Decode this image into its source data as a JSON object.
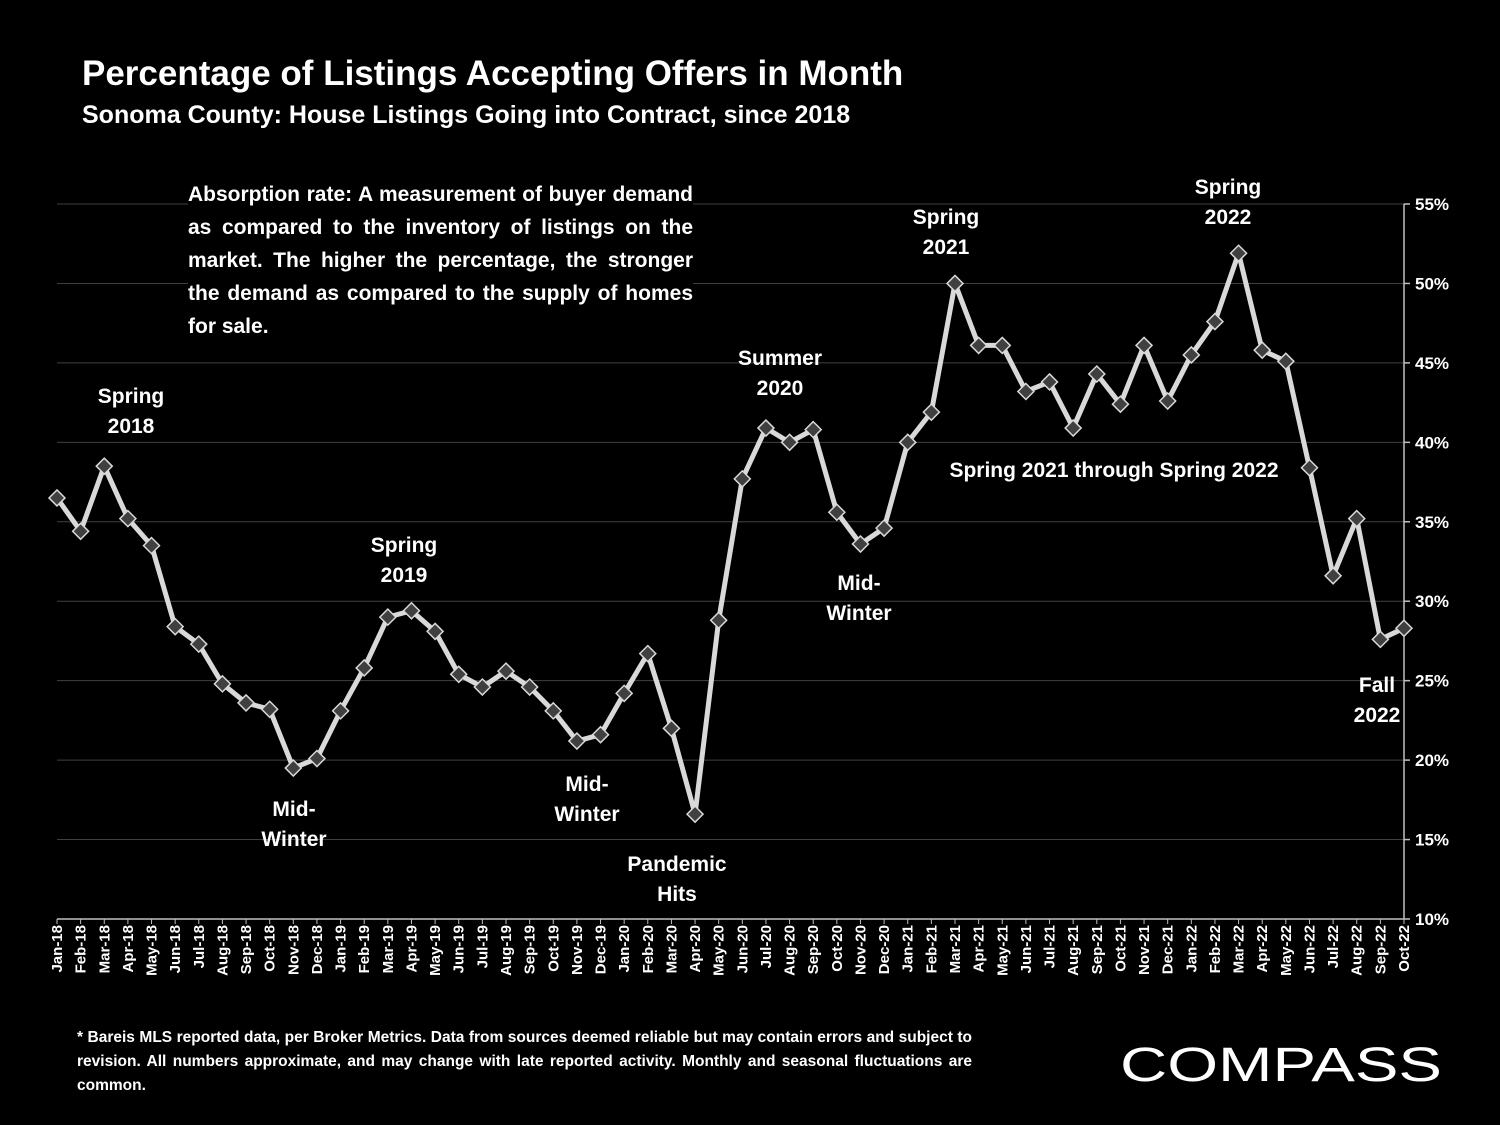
{
  "title": "Percentage of Listings Accepting Offers in Month",
  "subtitle": "Sonoma County: House Listings Going into Contract, since 2018",
  "definition": "Absorption rate: A measurement of buyer demand as compared to the inventory of listings on the market. The higher the percentage, the stronger the demand as compared to the supply of homes for sale.",
  "footnote": "* Bareis MLS reported data, per Broker Metrics. Data from sources deemed reliable but may contain errors and subject to revision. All numbers approximate, and may change with late reported activity. Monthly and seasonal fluctuations are common.",
  "brand": {
    "name": "COMPASS",
    "color": "#ffffff"
  },
  "colors": {
    "background": "#000000",
    "line": "#d9d9d9",
    "marker_fill": "#404040",
    "marker_stroke": "#d9d9d9",
    "grid": "#404040"
  },
  "chart_data": {
    "type": "line",
    "title": "Percentage of Listings Accepting Offers in Month",
    "subtitle": "Sonoma County: House Listings Going into Contract, since 2018",
    "xlabel": "",
    "ylabel": "",
    "y_axis_side": "right",
    "ylim": [
      10,
      55
    ],
    "yticks": [
      10,
      15,
      20,
      25,
      30,
      35,
      40,
      45,
      50,
      55
    ],
    "ytick_labels": [
      "10%",
      "15%",
      "20%",
      "25%",
      "30%",
      "35%",
      "40%",
      "45%",
      "50%",
      "55%"
    ],
    "grid": true,
    "legend": "none",
    "categories": [
      "Jan-18",
      "Feb-18",
      "Mar-18",
      "Apr-18",
      "May-18",
      "Jun-18",
      "Jul-18",
      "Aug-18",
      "Sep-18",
      "Oct-18",
      "Nov-18",
      "Dec-18",
      "Jan-19",
      "Feb-19",
      "Mar-19",
      "Apr-19",
      "May-19",
      "Jun-19",
      "Jul-19",
      "Aug-19",
      "Sep-19",
      "Oct-19",
      "Nov-19",
      "Dec-19",
      "Jan-20",
      "Feb-20",
      "Mar-20",
      "Apr-20",
      "May-20",
      "Jun-20",
      "Jul-20",
      "Aug-20",
      "Sep-20",
      "Oct-20",
      "Nov-20",
      "Dec-20",
      "Jan-21",
      "Feb-21",
      "Mar-21",
      "Apr-21",
      "May-21",
      "Jun-21",
      "Jul-21",
      "Aug-21",
      "Sep-21",
      "Oct-21",
      "Nov-21",
      "Dec-21",
      "Jan-22",
      "Feb-22",
      "Mar-22",
      "Apr-22",
      "May-22",
      "Jun-22",
      "Jul-22",
      "Aug-22",
      "Sep-22",
      "Oct-22"
    ],
    "series": [
      {
        "values": [
          36.5,
          34.4,
          38.5,
          35.2,
          33.5,
          28.4,
          27.3,
          24.8,
          23.6,
          23.2,
          19.5,
          20.1,
          23.1,
          25.8,
          29.0,
          29.4,
          28.1,
          25.4,
          24.6,
          25.6,
          24.6,
          23.1,
          21.2,
          21.6,
          24.2,
          26.7,
          22.0,
          16.6,
          28.8,
          37.7,
          40.9,
          40.0,
          40.8,
          35.6,
          33.6,
          34.6,
          40.0,
          41.9,
          50.0,
          46.1,
          46.1,
          43.2,
          43.8,
          40.9,
          44.3,
          42.4,
          46.1,
          42.6,
          45.5,
          47.6,
          51.9,
          45.8,
          45.1,
          38.4,
          31.6,
          35.2,
          27.6,
          28.3
        ]
      }
    ],
    "annotations": [
      {
        "id": "spring-2018",
        "lines": [
          "Spring",
          "2018"
        ]
      },
      {
        "id": "mid-winter-2018",
        "lines": [
          "Mid-",
          "Winter"
        ]
      },
      {
        "id": "spring-2019",
        "lines": [
          "Spring",
          "2019"
        ]
      },
      {
        "id": "mid-winter-2019",
        "lines": [
          "Mid-",
          "Winter"
        ]
      },
      {
        "id": "pandemic-hits",
        "lines": [
          "Pandemic",
          "Hits"
        ]
      },
      {
        "id": "summer-2020",
        "lines": [
          "Summer",
          "2020"
        ]
      },
      {
        "id": "mid-winter-2020",
        "lines": [
          "Mid-",
          "Winter"
        ]
      },
      {
        "id": "spring-2021",
        "lines": [
          "Spring",
          "2021"
        ]
      },
      {
        "id": "spring-2021-2022",
        "lines": [
          "Spring 2021 through Spring 2022"
        ]
      },
      {
        "id": "spring-2022",
        "lines": [
          "Spring",
          "2022"
        ]
      },
      {
        "id": "fall-2022",
        "lines": [
          "Fall",
          "2022"
        ]
      }
    ]
  }
}
